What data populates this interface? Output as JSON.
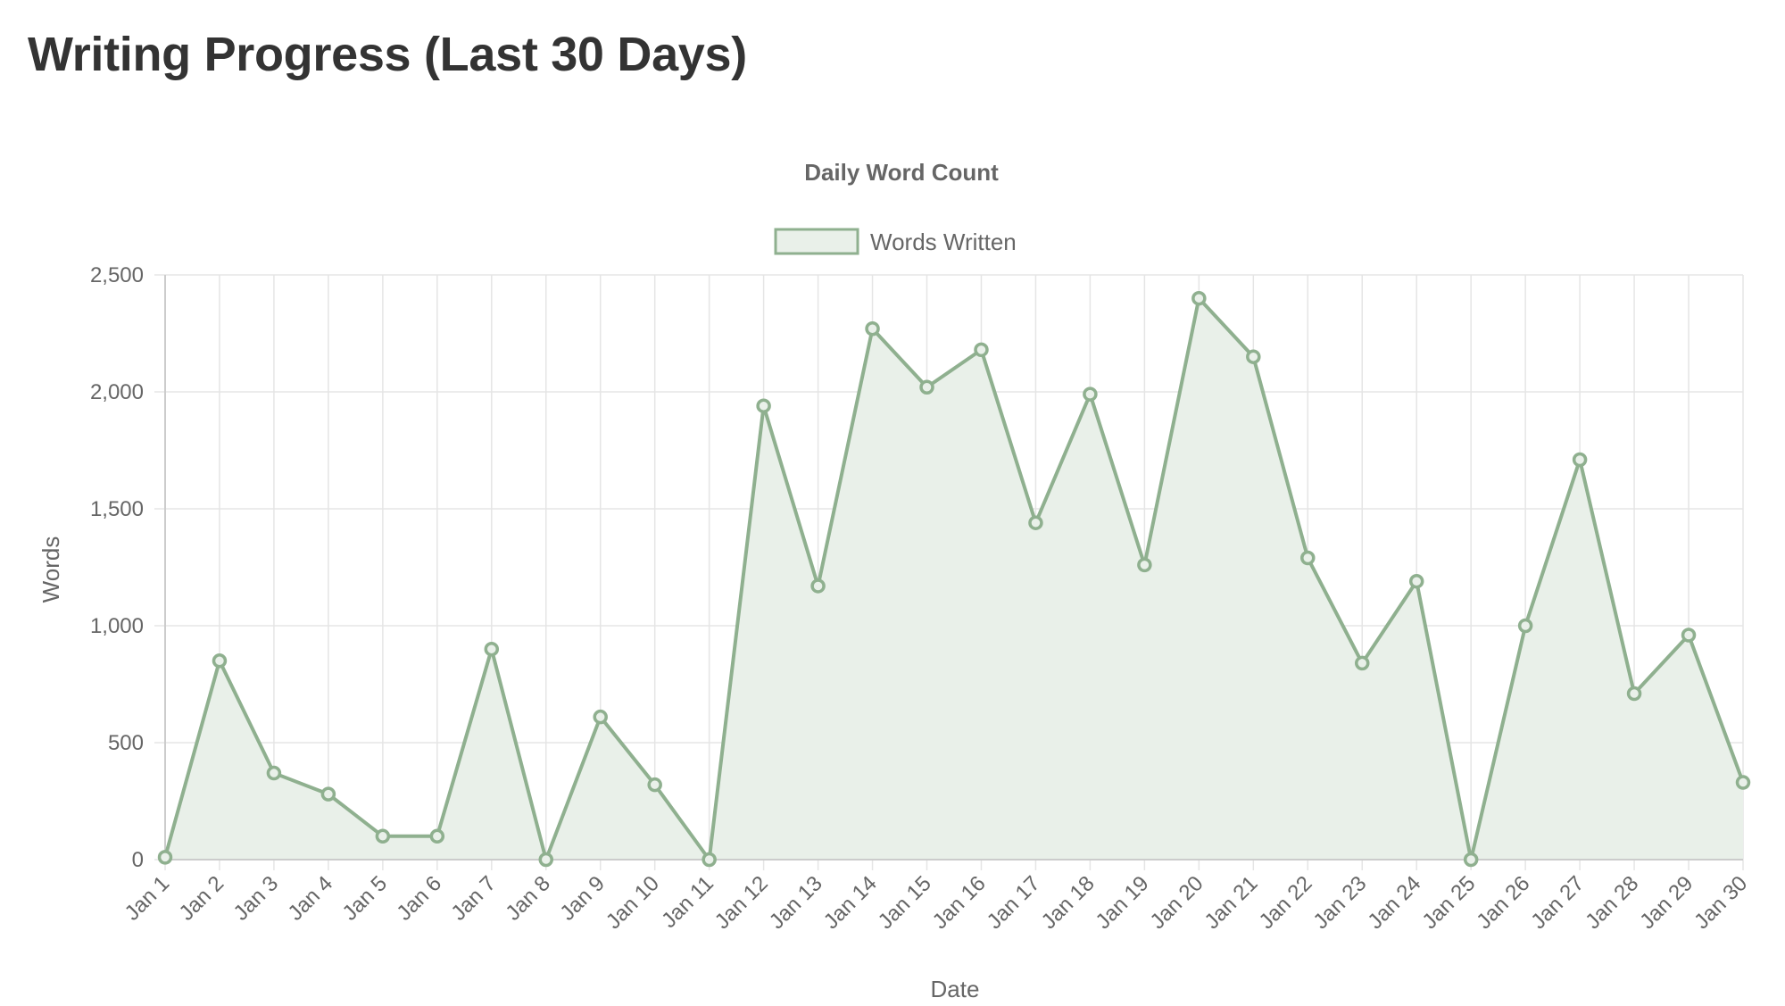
{
  "page": {
    "title": "Writing Progress (Last 30 Days)"
  },
  "colors": {
    "line": "#8fb08f",
    "fill": "#e9f0e9",
    "grid": "#e5e5e5",
    "axis": "#cccccc",
    "text": "#666666"
  },
  "chart_data": {
    "type": "line",
    "title": "Daily Word Count",
    "xlabel": "Date",
    "ylabel": "Words",
    "ylim": [
      0,
      2500
    ],
    "yticks": [
      0,
      500,
      1000,
      1500,
      2000,
      2500
    ],
    "ytick_labels": [
      "0",
      "500",
      "1,000",
      "1,500",
      "2,000",
      "2,500"
    ],
    "grid": true,
    "legend_position": "top-center",
    "categories": [
      "Jan 1",
      "Jan 2",
      "Jan 3",
      "Jan 4",
      "Jan 5",
      "Jan 6",
      "Jan 7",
      "Jan 8",
      "Jan 9",
      "Jan 10",
      "Jan 11",
      "Jan 12",
      "Jan 13",
      "Jan 14",
      "Jan 15",
      "Jan 16",
      "Jan 17",
      "Jan 18",
      "Jan 19",
      "Jan 20",
      "Jan 21",
      "Jan 22",
      "Jan 23",
      "Jan 24",
      "Jan 25",
      "Jan 26",
      "Jan 27",
      "Jan 28",
      "Jan 29",
      "Jan 30"
    ],
    "series": [
      {
        "name": "Words Written",
        "fill": true,
        "values": [
          10,
          850,
          370,
          280,
          100,
          100,
          900,
          0,
          610,
          320,
          0,
          1940,
          1170,
          2270,
          2020,
          2180,
          1440,
          1990,
          1260,
          2400,
          2150,
          1290,
          840,
          1190,
          0,
          1000,
          1710,
          710,
          960,
          330
        ]
      }
    ]
  }
}
